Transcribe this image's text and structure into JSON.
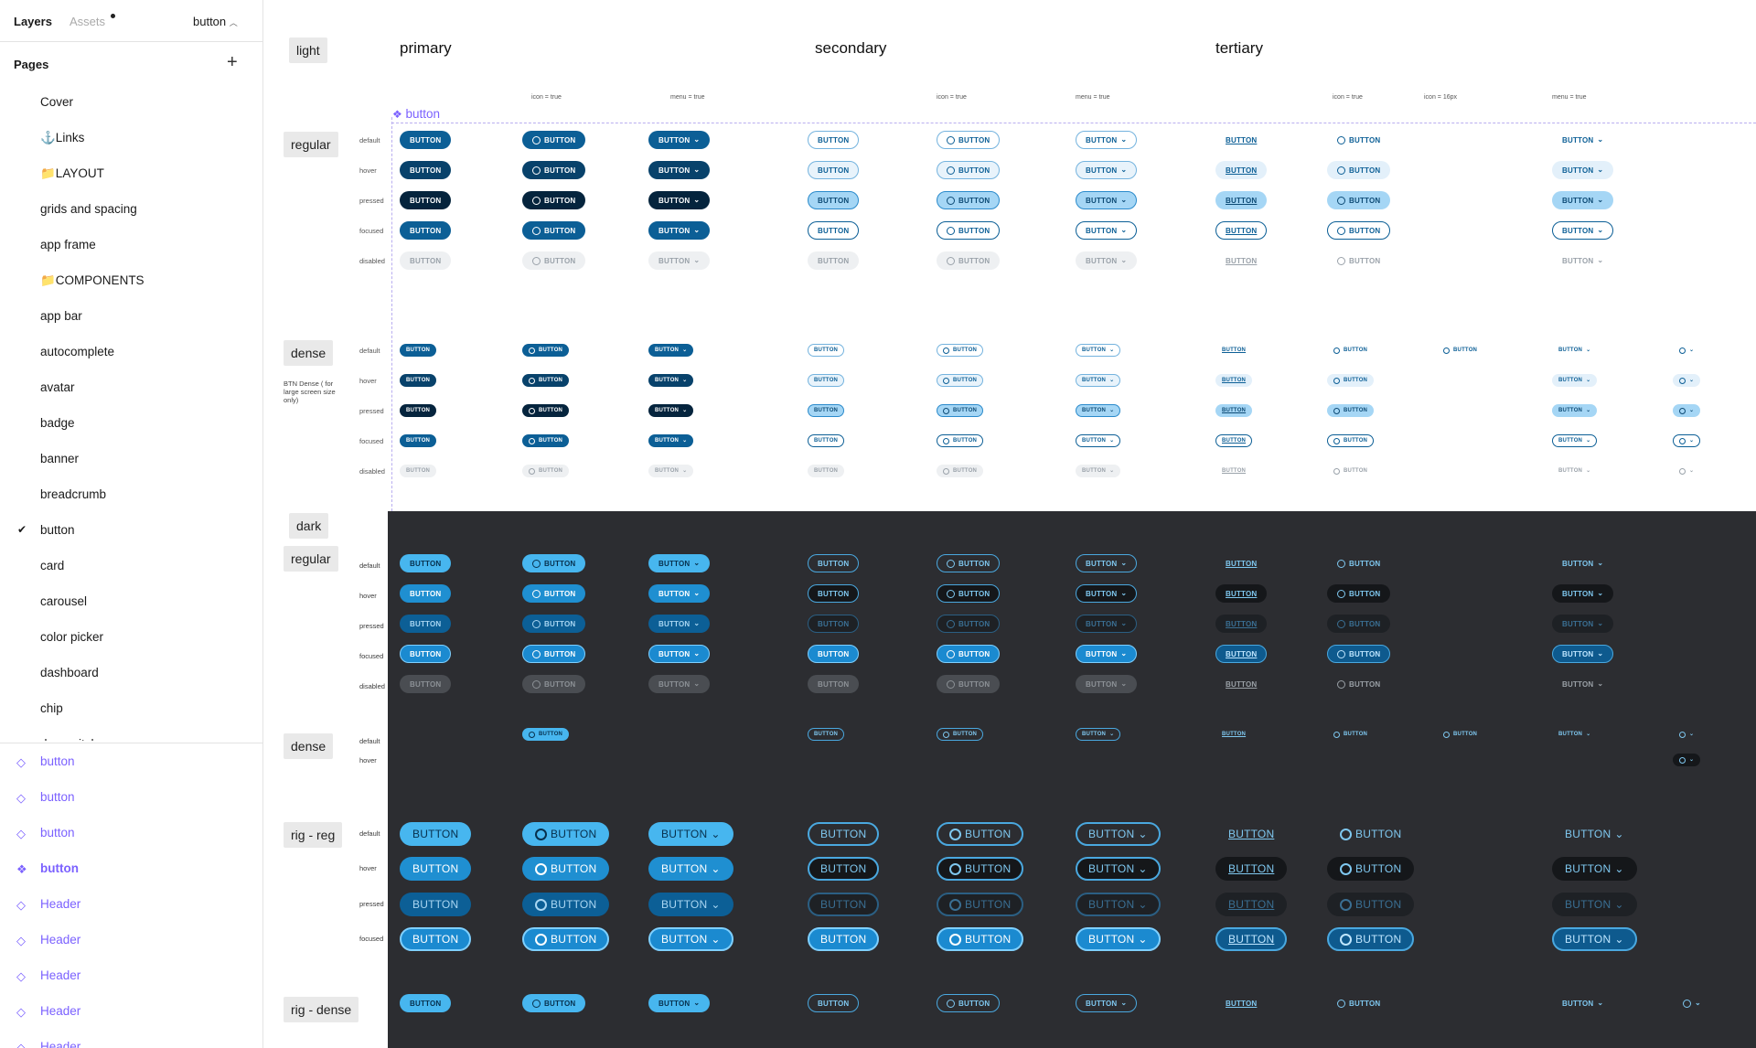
{
  "panel": {
    "tabs": {
      "layers": "Layers",
      "assets": "Assets",
      "page": "button"
    },
    "pages_title": "Pages",
    "pages": [
      "Cover",
      "⚓Links",
      "📁LAYOUT",
      "grids and spacing",
      "app frame",
      "📁COMPONENTS",
      "app bar",
      "autocomplete",
      "avatar",
      "badge",
      "banner",
      "breadcrumb",
      "button",
      "card",
      "carousel",
      "color picker",
      "dashboard",
      "chip",
      "dav switcher"
    ],
    "selected_page": "button",
    "layers": [
      "button",
      "button",
      "button",
      "button",
      "Header",
      "Header",
      "Header",
      "Header",
      "Header"
    ]
  },
  "canvas": {
    "component_name": "button",
    "columns": {
      "primary": "primary",
      "secondary": "secondary",
      "tertiary": "tertiary"
    },
    "sublabels": {
      "icon": "icon = true",
      "menu": "menu = true",
      "icon16": "icon = 16px"
    },
    "sections": {
      "light": "light",
      "regular": "regular",
      "dense": "dense",
      "dark": "dark",
      "dark_regular": "regular",
      "dark_dense": "dense",
      "rig_reg": "rig - reg",
      "rig_dense": "rig - dense"
    },
    "dense_note": "BTN Dense ( for large screen size only)",
    "states": [
      "default",
      "hover",
      "pressed",
      "focused",
      "disabled"
    ],
    "button_label": "BUTTON"
  },
  "colors": {
    "accent": "#7b61ff",
    "primary_light": "#0c5f96",
    "primary_dark": "#47b6ef",
    "dark_bg": "#2c2d31"
  }
}
